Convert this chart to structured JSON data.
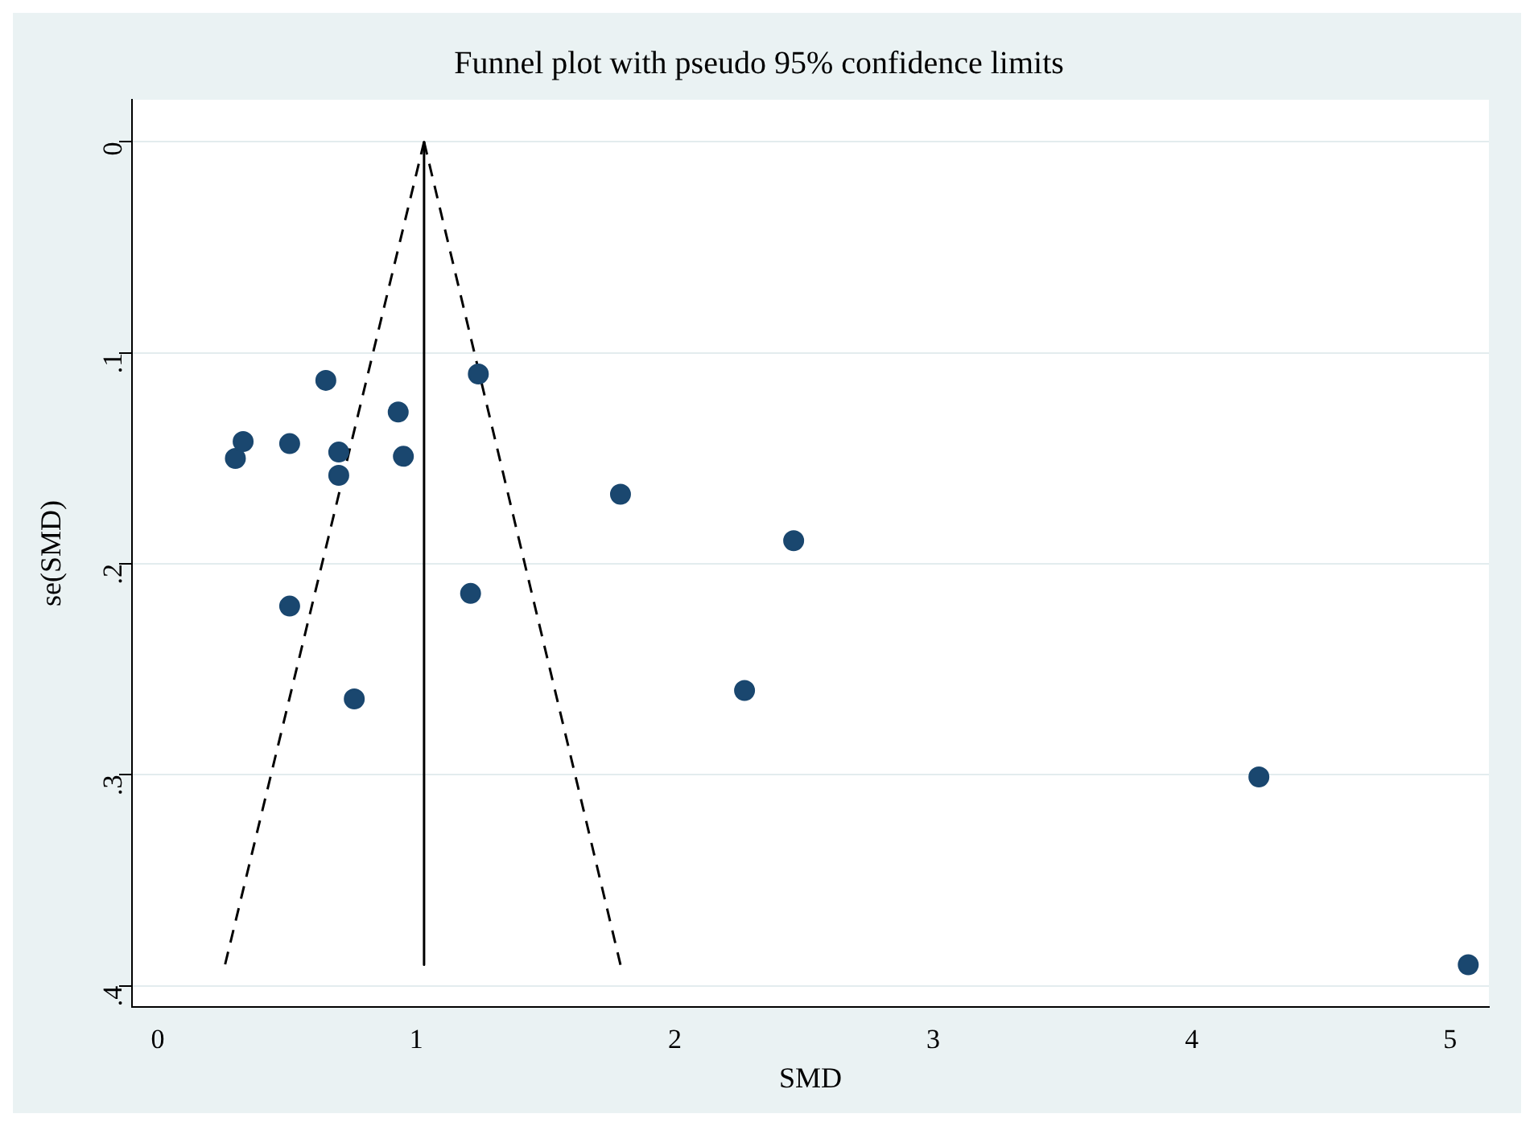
{
  "chart_data": {
    "type": "scatter",
    "title": "Funnel plot with pseudo 95% confidence limits",
    "xlabel": "SMD",
    "ylabel": "se(SMD)",
    "xlim": [
      -0.1,
      5.15
    ],
    "xticks": [
      0,
      1,
      2,
      3,
      4,
      5
    ],
    "ylim": [
      0.41,
      -0.02
    ],
    "yticks": [
      {
        "value": 0,
        "label": "0"
      },
      {
        "value": 0.1,
        "label": ".1"
      },
      {
        "value": 0.2,
        "label": ".2"
      },
      {
        "value": 0.3,
        "label": ".3"
      },
      {
        "value": 0.4,
        "label": ".4"
      }
    ],
    "grid": "y",
    "legend": false,
    "series": [
      {
        "type": "scatter",
        "color": "#1a476f",
        "marker": "circle",
        "x": [
          0.3,
          0.33,
          0.51,
          0.65,
          0.7,
          0.7,
          0.93,
          0.95,
          1.24,
          0.51,
          1.21,
          0.76,
          1.79,
          2.46,
          2.27,
          4.26,
          5.07
        ],
        "values": [
          0.15,
          0.142,
          0.143,
          0.113,
          0.147,
          0.158,
          0.128,
          0.149,
          0.11,
          0.22,
          0.214,
          0.264,
          0.167,
          0.189,
          0.26,
          0.301,
          0.39
        ]
      },
      {
        "type": "line",
        "color": "#000000",
        "line_style": "solid",
        "marker": "none",
        "x": [
          1.03,
          1.03
        ],
        "values": [
          0,
          0.39
        ]
      },
      {
        "type": "line",
        "color": "#000000",
        "line_style": "dashed",
        "marker": "none",
        "x": [
          1.03,
          0.26
        ],
        "values": [
          0,
          0.39
        ]
      },
      {
        "type": "line",
        "color": "#000000",
        "line_style": "dashed",
        "marker": "none",
        "x": [
          1.03,
          1.79
        ],
        "values": [
          0,
          0.39
        ]
      }
    ]
  }
}
